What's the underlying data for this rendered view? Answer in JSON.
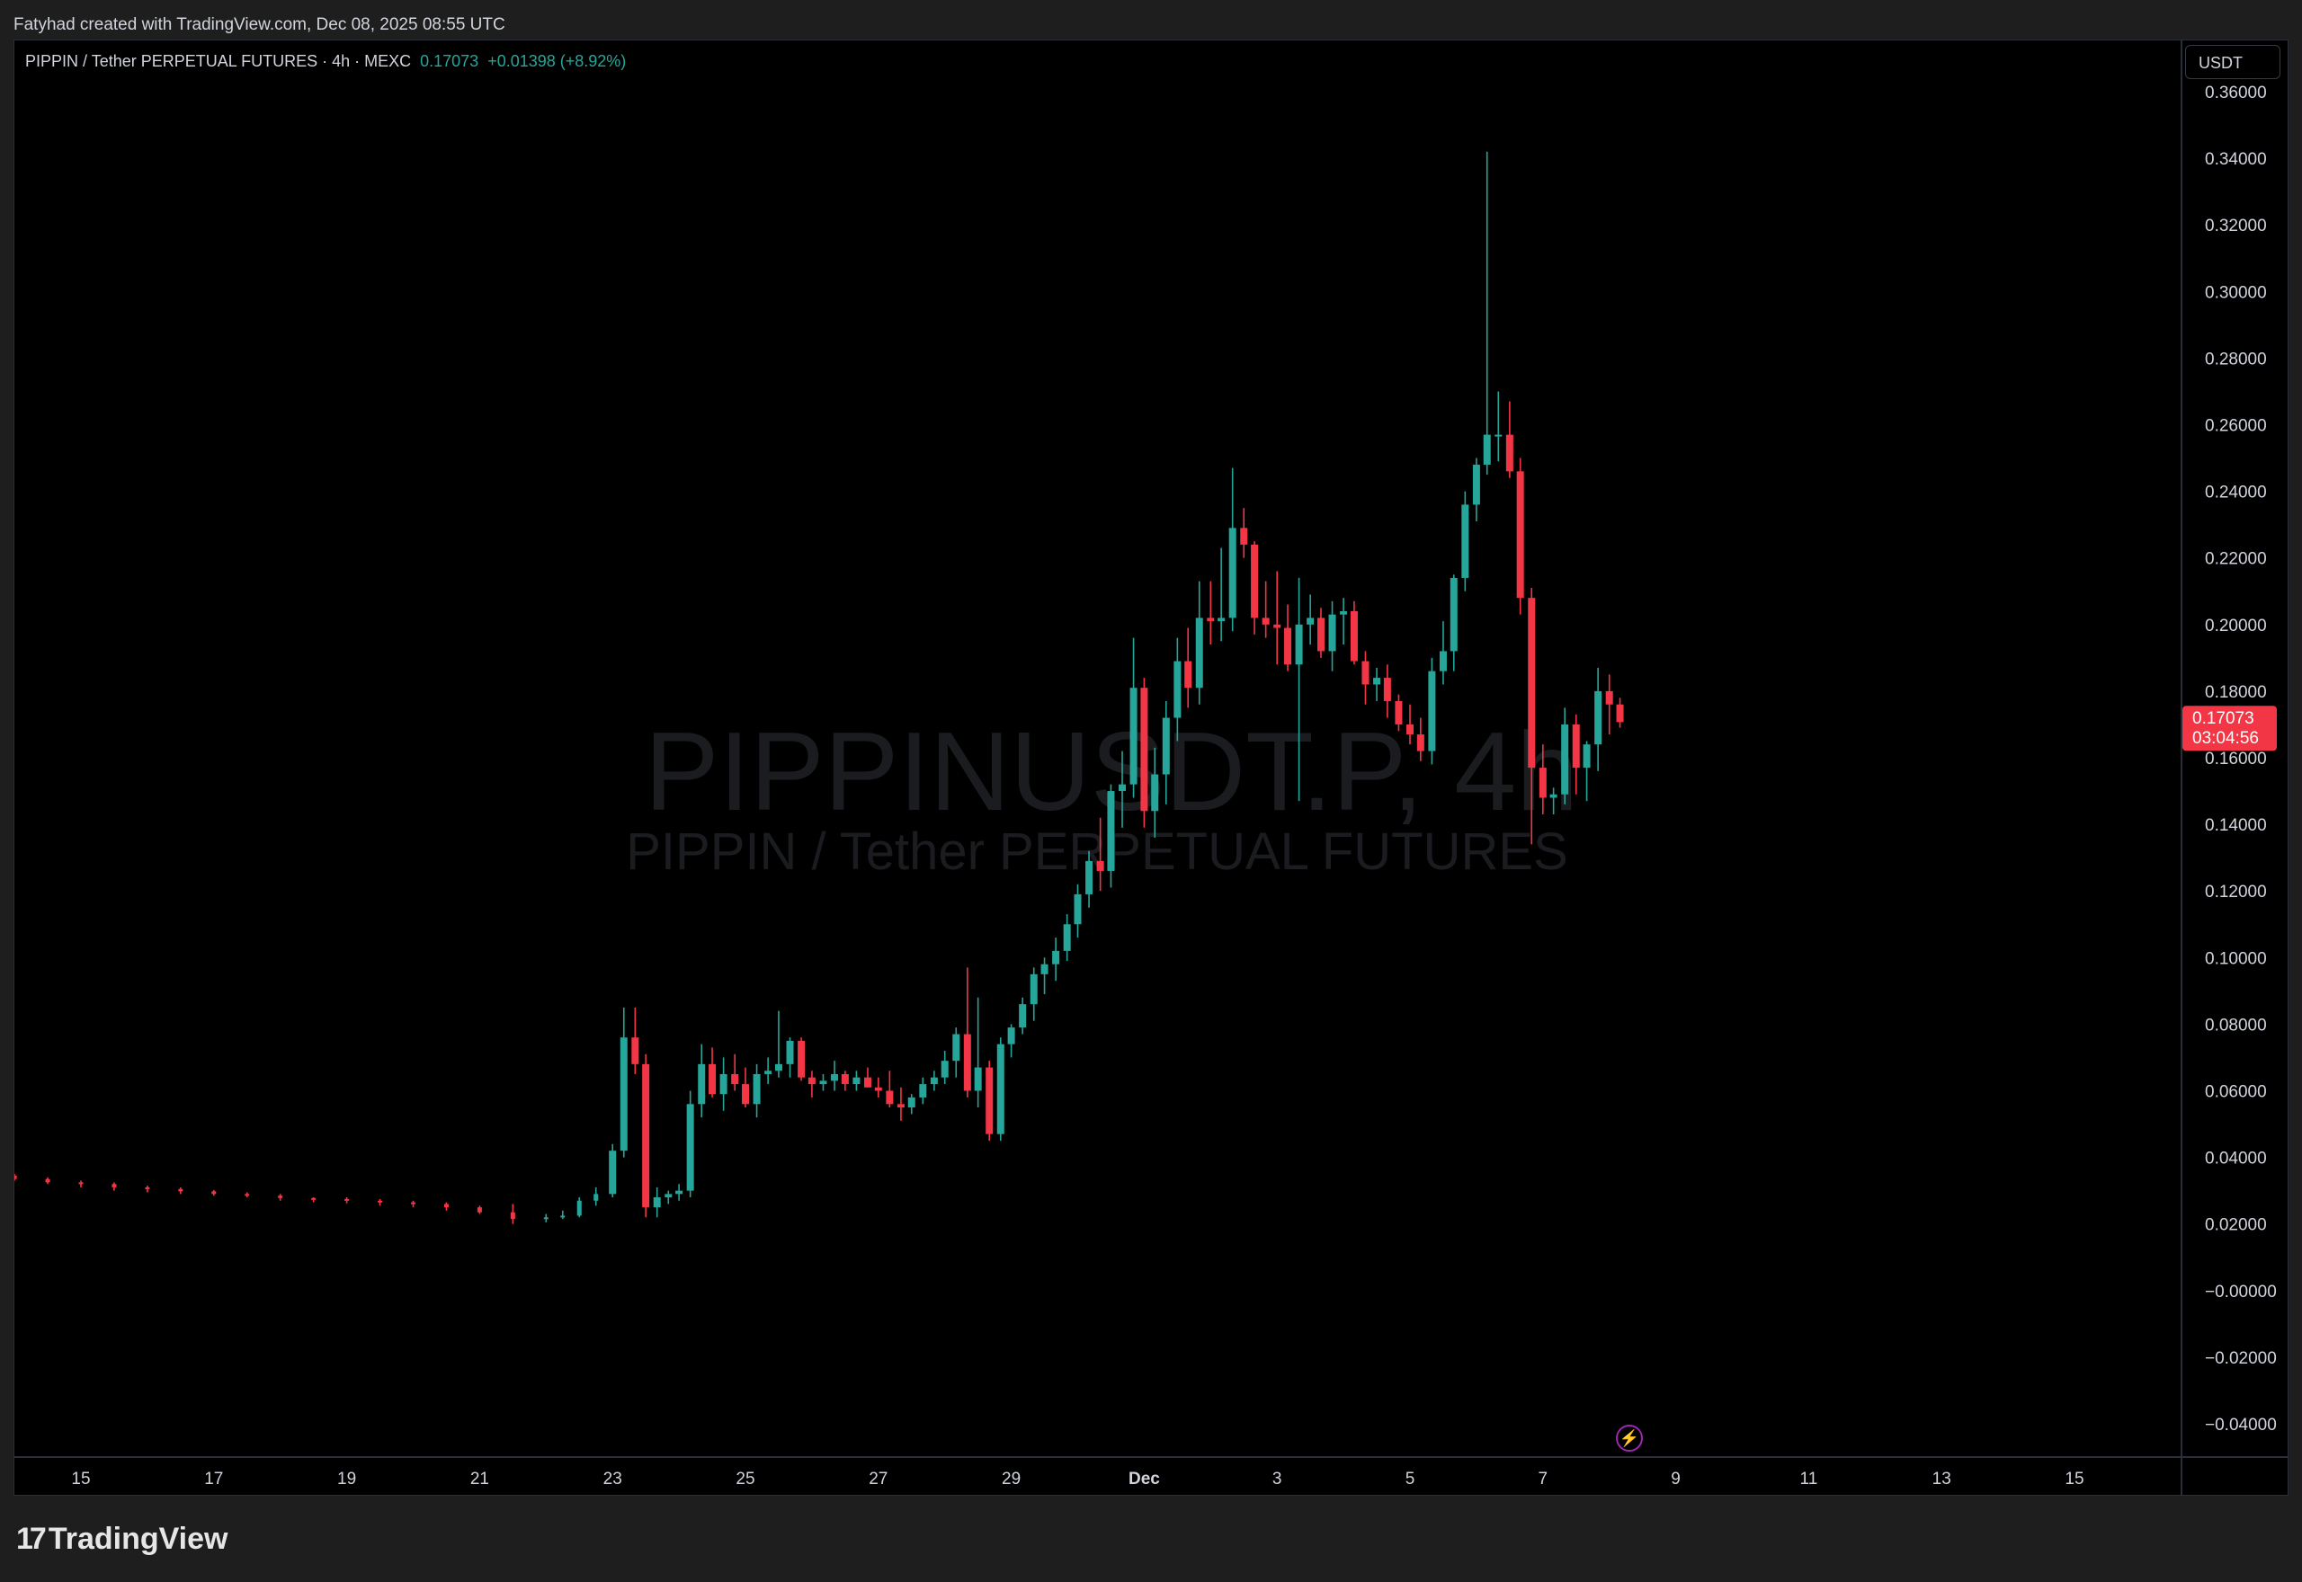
{
  "header": {
    "attribution": "Fatyhad created with TradingView.com, Dec 08, 2025 08:55 UTC"
  },
  "legend": {
    "symbol": "PIPPIN / Tether PERPETUAL FUTURES · 4h · MEXC",
    "last_price": "0.17073",
    "change": "+0.01398 (+8.92%)"
  },
  "currency_button": "USDT",
  "price_tag": {
    "price": "0.17073",
    "countdown": "03:04:56"
  },
  "watermark": {
    "ticker": "PIPPINUSDT.P, 4h",
    "description": "PIPPIN / Tether PERPETUAL FUTURES"
  },
  "logo": {
    "text": "TradingView",
    "mark": "17"
  },
  "icons": {
    "event": "lightning-icon",
    "brand": "tradingview-logo-icon"
  },
  "colors": {
    "up": "#26a69a",
    "down": "#f23645",
    "background": "#000000",
    "outer": "#1e1e1e",
    "axis_text": "#d1d4dc",
    "event_marker": "#9c27b0"
  },
  "chart_data": {
    "type": "candlestick",
    "interval": "4h",
    "last": 0.17073,
    "ylim": [
      -0.045,
      0.365
    ],
    "y_ticks": [
      "0.36000",
      "0.34000",
      "0.32000",
      "0.30000",
      "0.28000",
      "0.26000",
      "0.24000",
      "0.22000",
      "0.20000",
      "0.18000",
      "0.16000",
      "0.14000",
      "0.12000",
      "0.10000",
      "0.08000",
      "0.06000",
      "0.04000",
      "0.02000",
      "−0.00000",
      "−0.02000",
      "−0.04000"
    ],
    "x_ticks": [
      "15",
      "17",
      "19",
      "21",
      "23",
      "25",
      "27",
      "29",
      "Dec",
      "3",
      "5",
      "7",
      "9",
      "11",
      "13",
      "15"
    ],
    "x_tick_days": [
      -16,
      -14,
      -12,
      -10,
      -8,
      -6,
      -4,
      -2,
      0,
      2,
      4,
      6,
      8,
      10,
      12,
      14
    ],
    "x_range_days": [
      -17,
      15.8
    ],
    "candles": [
      {
        "t": -17.0,
        "o": 0.0345,
        "h": 0.035,
        "l": 0.033,
        "c": 0.0335
      },
      {
        "t": -16.5,
        "o": 0.0335,
        "h": 0.034,
        "l": 0.032,
        "c": 0.0325
      },
      {
        "t": -16.0,
        "o": 0.0325,
        "h": 0.033,
        "l": 0.031,
        "c": 0.032
      },
      {
        "t": -15.5,
        "o": 0.032,
        "h": 0.0325,
        "l": 0.03,
        "c": 0.031
      },
      {
        "t": -15.0,
        "o": 0.031,
        "h": 0.0315,
        "l": 0.0295,
        "c": 0.0305
      },
      {
        "t": -14.5,
        "o": 0.0305,
        "h": 0.031,
        "l": 0.029,
        "c": 0.0298
      },
      {
        "t": -14.0,
        "o": 0.0298,
        "h": 0.0302,
        "l": 0.0285,
        "c": 0.029
      },
      {
        "t": -13.5,
        "o": 0.029,
        "h": 0.0295,
        "l": 0.028,
        "c": 0.0285
      },
      {
        "t": -13.0,
        "o": 0.0285,
        "h": 0.029,
        "l": 0.027,
        "c": 0.0278
      },
      {
        "t": -12.5,
        "o": 0.0278,
        "h": 0.028,
        "l": 0.0265,
        "c": 0.0275
      },
      {
        "t": -12.0,
        "o": 0.0275,
        "h": 0.028,
        "l": 0.0262,
        "c": 0.027
      },
      {
        "t": -11.5,
        "o": 0.027,
        "h": 0.0275,
        "l": 0.0255,
        "c": 0.0265
      },
      {
        "t": -11.0,
        "o": 0.0265,
        "h": 0.027,
        "l": 0.025,
        "c": 0.026
      },
      {
        "t": -10.5,
        "o": 0.026,
        "h": 0.0265,
        "l": 0.024,
        "c": 0.025
      },
      {
        "t": -10.0,
        "o": 0.025,
        "h": 0.0255,
        "l": 0.023,
        "c": 0.0235
      },
      {
        "t": -9.5,
        "o": 0.0235,
        "h": 0.026,
        "l": 0.02,
        "c": 0.0215
      },
      {
        "t": -9.0,
        "o": 0.0215,
        "h": 0.023,
        "l": 0.0205,
        "c": 0.022
      },
      {
        "t": -8.75,
        "o": 0.022,
        "h": 0.024,
        "l": 0.0215,
        "c": 0.0225
      },
      {
        "t": -8.5,
        "o": 0.0225,
        "h": 0.028,
        "l": 0.022,
        "c": 0.027
      },
      {
        "t": -8.25,
        "o": 0.027,
        "h": 0.031,
        "l": 0.0255,
        "c": 0.029
      },
      {
        "t": -8.0,
        "o": 0.029,
        "h": 0.044,
        "l": 0.028,
        "c": 0.042
      },
      {
        "t": -7.83,
        "o": 0.042,
        "h": 0.085,
        "l": 0.04,
        "c": 0.076
      },
      {
        "t": -7.66,
        "o": 0.076,
        "h": 0.085,
        "l": 0.065,
        "c": 0.068
      },
      {
        "t": -7.5,
        "o": 0.068,
        "h": 0.071,
        "l": 0.022,
        "c": 0.025
      },
      {
        "t": -7.33,
        "o": 0.025,
        "h": 0.031,
        "l": 0.022,
        "c": 0.028
      },
      {
        "t": -7.16,
        "o": 0.028,
        "h": 0.03,
        "l": 0.026,
        "c": 0.029
      },
      {
        "t": -7.0,
        "o": 0.029,
        "h": 0.032,
        "l": 0.027,
        "c": 0.03
      },
      {
        "t": -6.83,
        "o": 0.03,
        "h": 0.06,
        "l": 0.028,
        "c": 0.056
      },
      {
        "t": -6.66,
        "o": 0.056,
        "h": 0.074,
        "l": 0.052,
        "c": 0.068
      },
      {
        "t": -6.5,
        "o": 0.068,
        "h": 0.073,
        "l": 0.058,
        "c": 0.059
      },
      {
        "t": -6.33,
        "o": 0.059,
        "h": 0.07,
        "l": 0.054,
        "c": 0.065
      },
      {
        "t": -6.16,
        "o": 0.065,
        "h": 0.071,
        "l": 0.06,
        "c": 0.062
      },
      {
        "t": -6.0,
        "o": 0.062,
        "h": 0.067,
        "l": 0.055,
        "c": 0.056
      },
      {
        "t": -5.83,
        "o": 0.056,
        "h": 0.068,
        "l": 0.052,
        "c": 0.065
      },
      {
        "t": -5.66,
        "o": 0.065,
        "h": 0.07,
        "l": 0.062,
        "c": 0.066
      },
      {
        "t": -5.5,
        "o": 0.066,
        "h": 0.084,
        "l": 0.064,
        "c": 0.068
      },
      {
        "t": -5.33,
        "o": 0.068,
        "h": 0.076,
        "l": 0.064,
        "c": 0.075
      },
      {
        "t": -5.16,
        "o": 0.075,
        "h": 0.076,
        "l": 0.063,
        "c": 0.064
      },
      {
        "t": -5.0,
        "o": 0.064,
        "h": 0.066,
        "l": 0.058,
        "c": 0.062
      },
      {
        "t": -4.83,
        "o": 0.062,
        "h": 0.065,
        "l": 0.06,
        "c": 0.063
      },
      {
        "t": -4.66,
        "o": 0.063,
        "h": 0.069,
        "l": 0.06,
        "c": 0.065
      },
      {
        "t": -4.5,
        "o": 0.065,
        "h": 0.066,
        "l": 0.06,
        "c": 0.062
      },
      {
        "t": -4.33,
        "o": 0.062,
        "h": 0.066,
        "l": 0.06,
        "c": 0.064
      },
      {
        "t": -4.16,
        "o": 0.064,
        "h": 0.067,
        "l": 0.061,
        "c": 0.061
      },
      {
        "t": -4.0,
        "o": 0.061,
        "h": 0.064,
        "l": 0.058,
        "c": 0.06
      },
      {
        "t": -3.83,
        "o": 0.06,
        "h": 0.066,
        "l": 0.055,
        "c": 0.056
      },
      {
        "t": -3.66,
        "o": 0.056,
        "h": 0.061,
        "l": 0.051,
        "c": 0.055
      },
      {
        "t": -3.5,
        "o": 0.055,
        "h": 0.059,
        "l": 0.053,
        "c": 0.058
      },
      {
        "t": -3.33,
        "o": 0.058,
        "h": 0.064,
        "l": 0.056,
        "c": 0.062
      },
      {
        "t": -3.16,
        "o": 0.062,
        "h": 0.066,
        "l": 0.06,
        "c": 0.064
      },
      {
        "t": -3.0,
        "o": 0.064,
        "h": 0.072,
        "l": 0.062,
        "c": 0.069
      },
      {
        "t": -2.83,
        "o": 0.069,
        "h": 0.079,
        "l": 0.064,
        "c": 0.077
      },
      {
        "t": -2.66,
        "o": 0.077,
        "h": 0.097,
        "l": 0.058,
        "c": 0.06
      },
      {
        "t": -2.5,
        "o": 0.06,
        "h": 0.088,
        "l": 0.055,
        "c": 0.067
      },
      {
        "t": -2.33,
        "o": 0.067,
        "h": 0.069,
        "l": 0.045,
        "c": 0.047
      },
      {
        "t": -2.16,
        "o": 0.047,
        "h": 0.076,
        "l": 0.045,
        "c": 0.074
      },
      {
        "t": -2.0,
        "o": 0.074,
        "h": 0.08,
        "l": 0.07,
        "c": 0.079
      },
      {
        "t": -1.83,
        "o": 0.079,
        "h": 0.088,
        "l": 0.077,
        "c": 0.086
      },
      {
        "t": -1.66,
        "o": 0.086,
        "h": 0.097,
        "l": 0.081,
        "c": 0.095
      },
      {
        "t": -1.5,
        "o": 0.095,
        "h": 0.1,
        "l": 0.089,
        "c": 0.098
      },
      {
        "t": -1.33,
        "o": 0.098,
        "h": 0.106,
        "l": 0.093,
        "c": 0.102
      },
      {
        "t": -1.16,
        "o": 0.102,
        "h": 0.113,
        "l": 0.099,
        "c": 0.11
      },
      {
        "t": -1.0,
        "o": 0.11,
        "h": 0.122,
        "l": 0.106,
        "c": 0.119
      },
      {
        "t": -0.83,
        "o": 0.119,
        "h": 0.132,
        "l": 0.115,
        "c": 0.129
      },
      {
        "t": -0.66,
        "o": 0.129,
        "h": 0.142,
        "l": 0.12,
        "c": 0.126
      },
      {
        "t": -0.5,
        "o": 0.126,
        "h": 0.152,
        "l": 0.121,
        "c": 0.15
      },
      {
        "t": -0.33,
        "o": 0.15,
        "h": 0.162,
        "l": 0.139,
        "c": 0.152
      },
      {
        "t": -0.16,
        "o": 0.152,
        "h": 0.196,
        "l": 0.148,
        "c": 0.181
      },
      {
        "t": 0.0,
        "o": 0.181,
        "h": 0.184,
        "l": 0.139,
        "c": 0.144
      },
      {
        "t": 0.16,
        "o": 0.144,
        "h": 0.163,
        "l": 0.136,
        "c": 0.155
      },
      {
        "t": 0.33,
        "o": 0.155,
        "h": 0.177,
        "l": 0.146,
        "c": 0.172
      },
      {
        "t": 0.5,
        "o": 0.172,
        "h": 0.196,
        "l": 0.165,
        "c": 0.189
      },
      {
        "t": 0.66,
        "o": 0.189,
        "h": 0.199,
        "l": 0.175,
        "c": 0.181
      },
      {
        "t": 0.83,
        "o": 0.181,
        "h": 0.213,
        "l": 0.176,
        "c": 0.202
      },
      {
        "t": 1.0,
        "o": 0.202,
        "h": 0.213,
        "l": 0.194,
        "c": 0.201
      },
      {
        "t": 1.16,
        "o": 0.201,
        "h": 0.223,
        "l": 0.195,
        "c": 0.202
      },
      {
        "t": 1.33,
        "o": 0.202,
        "h": 0.247,
        "l": 0.198,
        "c": 0.229
      },
      {
        "t": 1.5,
        "o": 0.229,
        "h": 0.235,
        "l": 0.22,
        "c": 0.224
      },
      {
        "t": 1.66,
        "o": 0.224,
        "h": 0.225,
        "l": 0.197,
        "c": 0.202
      },
      {
        "t": 1.83,
        "o": 0.202,
        "h": 0.213,
        "l": 0.196,
        "c": 0.2
      },
      {
        "t": 2.0,
        "o": 0.2,
        "h": 0.216,
        "l": 0.188,
        "c": 0.199
      },
      {
        "t": 2.16,
        "o": 0.199,
        "h": 0.206,
        "l": 0.186,
        "c": 0.188
      },
      {
        "t": 2.33,
        "o": 0.188,
        "h": 0.214,
        "l": 0.147,
        "c": 0.2
      },
      {
        "t": 2.5,
        "o": 0.2,
        "h": 0.209,
        "l": 0.194,
        "c": 0.202
      },
      {
        "t": 2.66,
        "o": 0.202,
        "h": 0.205,
        "l": 0.19,
        "c": 0.192
      },
      {
        "t": 2.83,
        "o": 0.192,
        "h": 0.207,
        "l": 0.186,
        "c": 0.203
      },
      {
        "t": 3.0,
        "o": 0.203,
        "h": 0.208,
        "l": 0.194,
        "c": 0.204
      },
      {
        "t": 3.16,
        "o": 0.204,
        "h": 0.207,
        "l": 0.188,
        "c": 0.189
      },
      {
        "t": 3.33,
        "o": 0.189,
        "h": 0.192,
        "l": 0.176,
        "c": 0.182
      },
      {
        "t": 3.5,
        "o": 0.182,
        "h": 0.187,
        "l": 0.177,
        "c": 0.184
      },
      {
        "t": 3.66,
        "o": 0.184,
        "h": 0.188,
        "l": 0.172,
        "c": 0.177
      },
      {
        "t": 3.83,
        "o": 0.177,
        "h": 0.179,
        "l": 0.168,
        "c": 0.17
      },
      {
        "t": 4.0,
        "o": 0.17,
        "h": 0.176,
        "l": 0.164,
        "c": 0.167
      },
      {
        "t": 4.16,
        "o": 0.167,
        "h": 0.172,
        "l": 0.159,
        "c": 0.162
      },
      {
        "t": 4.33,
        "o": 0.162,
        "h": 0.19,
        "l": 0.158,
        "c": 0.186
      },
      {
        "t": 4.5,
        "o": 0.186,
        "h": 0.201,
        "l": 0.182,
        "c": 0.192
      },
      {
        "t": 4.66,
        "o": 0.192,
        "h": 0.215,
        "l": 0.186,
        "c": 0.214
      },
      {
        "t": 4.83,
        "o": 0.214,
        "h": 0.24,
        "l": 0.21,
        "c": 0.236
      },
      {
        "t": 5.0,
        "o": 0.236,
        "h": 0.25,
        "l": 0.231,
        "c": 0.248
      },
      {
        "t": 5.16,
        "o": 0.248,
        "h": 0.342,
        "l": 0.245,
        "c": 0.257
      },
      {
        "t": 5.33,
        "o": 0.257,
        "h": 0.27,
        "l": 0.249,
        "c": 0.257
      },
      {
        "t": 5.5,
        "o": 0.257,
        "h": 0.267,
        "l": 0.244,
        "c": 0.246
      },
      {
        "t": 5.66,
        "o": 0.246,
        "h": 0.25,
        "l": 0.203,
        "c": 0.208
      },
      {
        "t": 5.83,
        "o": 0.208,
        "h": 0.211,
        "l": 0.134,
        "c": 0.157
      },
      {
        "t": 6.0,
        "o": 0.157,
        "h": 0.164,
        "l": 0.143,
        "c": 0.148
      },
      {
        "t": 6.16,
        "o": 0.148,
        "h": 0.151,
        "l": 0.143,
        "c": 0.149
      },
      {
        "t": 6.33,
        "o": 0.149,
        "h": 0.175,
        "l": 0.146,
        "c": 0.17
      },
      {
        "t": 6.5,
        "o": 0.17,
        "h": 0.173,
        "l": 0.149,
        "c": 0.157
      },
      {
        "t": 6.66,
        "o": 0.157,
        "h": 0.165,
        "l": 0.147,
        "c": 0.164
      },
      {
        "t": 6.83,
        "o": 0.164,
        "h": 0.187,
        "l": 0.156,
        "c": 0.18
      },
      {
        "t": 7.0,
        "o": 0.18,
        "h": 0.185,
        "l": 0.167,
        "c": 0.176
      },
      {
        "t": 7.16,
        "o": 0.176,
        "h": 0.178,
        "l": 0.169,
        "c": 0.1707
      }
    ]
  }
}
